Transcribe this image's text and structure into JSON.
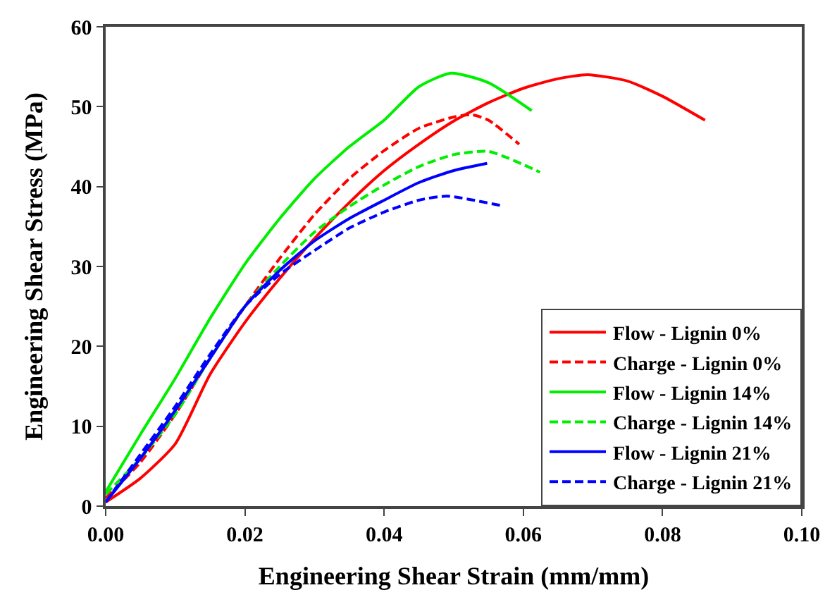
{
  "chart_data": {
    "type": "line",
    "xlabel": "Engineering Shear Strain (mm/mm)",
    "ylabel": "Engineering Shear Stress (MPa)",
    "xlim": [
      0,
      0.1
    ],
    "ylim": [
      0,
      60
    ],
    "xticks": [
      {
        "value": 0,
        "label": "0.00"
      },
      {
        "value": 0.02,
        "label": "0.02"
      },
      {
        "value": 0.04,
        "label": "0.04"
      },
      {
        "value": 0.06,
        "label": "0.06"
      },
      {
        "value": 0.08,
        "label": "0.08"
      },
      {
        "value": 0.1,
        "label": "0.10"
      }
    ],
    "yticks": [
      0,
      10,
      20,
      30,
      40,
      50,
      60
    ],
    "legend": "bottom right",
    "marker": "none",
    "series": [
      {
        "name": "Flow - Lignin 0%",
        "color": "#ff0000",
        "line_style": "solid",
        "x": [
          0,
          0.005,
          0.01,
          0.015,
          0.02,
          0.025,
          0.03,
          0.035,
          0.04,
          0.045,
          0.05,
          0.055,
          0.06,
          0.065,
          0.0692,
          0.075,
          0.08,
          0.0861
        ],
        "values": [
          0.5,
          3.5,
          7.8,
          16.5,
          23,
          28.5,
          33.5,
          38,
          42,
          45.3,
          48.2,
          50.5,
          52.3,
          53.5,
          54,
          53.2,
          51.3,
          48.3
        ]
      },
      {
        "name": "Charge - Lignin 0%",
        "color": "#ff0000",
        "line_style": "dashed",
        "x": [
          0,
          0.005,
          0.01,
          0.015,
          0.02,
          0.025,
          0.03,
          0.035,
          0.04,
          0.045,
          0.05,
          0.0526,
          0.055,
          0.0594
        ],
        "values": [
          1,
          5.5,
          11.5,
          18.5,
          25,
          31,
          36.5,
          41,
          44.5,
          47.3,
          48.7,
          49,
          48.3,
          45.3
        ]
      },
      {
        "name": "Flow - Lignin 14%",
        "color": "#00ee00",
        "line_style": "solid",
        "x": [
          0,
          0.005,
          0.01,
          0.015,
          0.02,
          0.025,
          0.03,
          0.035,
          0.04,
          0.045,
          0.0496,
          0.055,
          0.0612
        ],
        "values": [
          1.8,
          9,
          16,
          23.5,
          30.3,
          36,
          41,
          45,
          48.3,
          52.5,
          54.2,
          53,
          49.5
        ]
      },
      {
        "name": "Charge - Lignin 14%",
        "color": "#00ee00",
        "line_style": "dashed",
        "x": [
          0,
          0.005,
          0.01,
          0.015,
          0.02,
          0.025,
          0.03,
          0.035,
          0.04,
          0.045,
          0.05,
          0.055,
          0.0624
        ],
        "values": [
          1.5,
          6,
          11.5,
          18.5,
          25,
          30,
          34.3,
          37.5,
          40.2,
          42.5,
          44,
          44.4,
          41.8
        ]
      },
      {
        "name": "Flow - Lignin 21%",
        "color": "#0000ff",
        "line_style": "solid",
        "x": [
          0,
          0.005,
          0.01,
          0.015,
          0.02,
          0.025,
          0.03,
          0.035,
          0.04,
          0.045,
          0.05,
          0.0548
        ],
        "values": [
          0.5,
          6,
          12,
          18.5,
          25,
          29.5,
          33.2,
          36,
          38.3,
          40.5,
          42,
          42.9
        ]
      },
      {
        "name": "Charge - Lignin 21%",
        "color": "#0000ff",
        "line_style": "dashed",
        "x": [
          0,
          0.005,
          0.01,
          0.015,
          0.02,
          0.025,
          0.03,
          0.035,
          0.04,
          0.045,
          0.049,
          0.0569
        ],
        "values": [
          0.5,
          6.5,
          12.5,
          19,
          25,
          29,
          32,
          34.8,
          36.8,
          38.3,
          38.8,
          37.6
        ]
      }
    ]
  }
}
